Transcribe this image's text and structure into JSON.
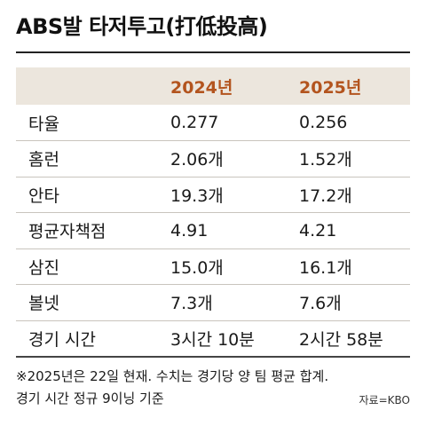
{
  "title": "ABS발 타저투고(打低投高)",
  "chart_data": {
    "type": "table",
    "columns": [
      "",
      "2024년",
      "2025년"
    ],
    "rows": [
      {
        "label": "타율",
        "v2024": "0.277",
        "v2025": "0.256"
      },
      {
        "label": "홈런",
        "v2024": "2.06개",
        "v2025": "1.52개"
      },
      {
        "label": "안타",
        "v2024": "19.3개",
        "v2025": "17.2개"
      },
      {
        "label": "평균자책점",
        "v2024": "4.91",
        "v2025": "4.21"
      },
      {
        "label": "삼진",
        "v2024": "15.0개",
        "v2025": "16.1개"
      },
      {
        "label": "볼넷",
        "v2024": "7.3개",
        "v2025": "7.6개"
      },
      {
        "label": "경기 시간",
        "v2024": "3시간 10분",
        "v2025": "2시간 58분"
      }
    ]
  },
  "footnote": {
    "line1": "※2025년은 22일 현재. 수치는 경기당 양 팀 평균 합계.",
    "line2": "경기 시간 정규 9이닝 기준"
  },
  "source": "자료=KBO",
  "colors": {
    "header_bg": "#ece6dd",
    "header_text": "#b3541e"
  }
}
